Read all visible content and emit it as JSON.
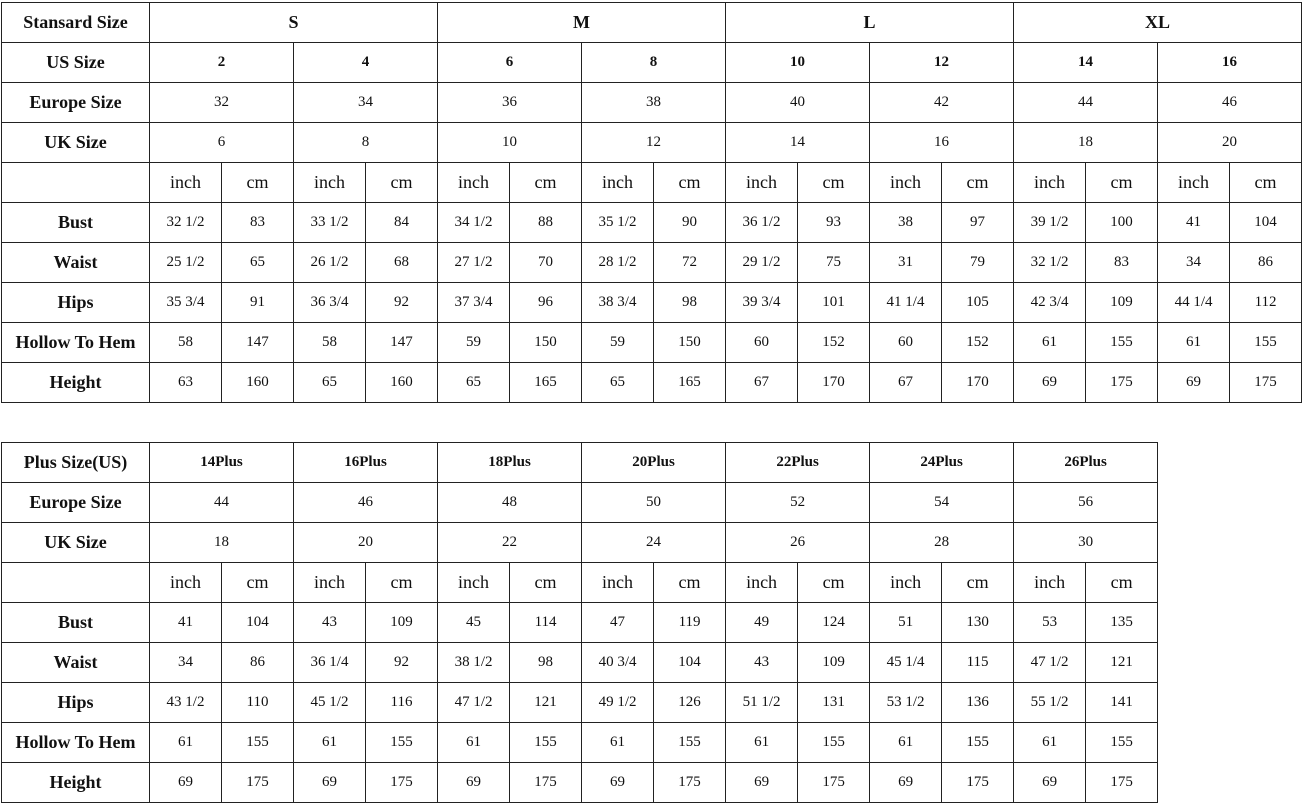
{
  "standard_table": {
    "size_label": "Stansard Size",
    "sizes": [
      "S",
      "M",
      "L",
      "XL"
    ],
    "us_label": "US Size",
    "us": [
      "2",
      "4",
      "6",
      "8",
      "10",
      "12",
      "14",
      "16"
    ],
    "europe_label": "Europe Size",
    "europe": [
      "32",
      "34",
      "36",
      "38",
      "40",
      "42",
      "44",
      "46"
    ],
    "uk_label": "UK Size",
    "uk": [
      "6",
      "8",
      "10",
      "12",
      "14",
      "16",
      "18",
      "20"
    ],
    "units": [
      "inch",
      "cm"
    ],
    "measurements": [
      {
        "label": "Bust",
        "values": [
          "32 1/2",
          "83",
          "33 1/2",
          "84",
          "34 1/2",
          "88",
          "35 1/2",
          "90",
          "36 1/2",
          "93",
          "38",
          "97",
          "39 1/2",
          "100",
          "41",
          "104"
        ]
      },
      {
        "label": "Waist",
        "values": [
          "25 1/2",
          "65",
          "26 1/2",
          "68",
          "27 1/2",
          "70",
          "28 1/2",
          "72",
          "29 1/2",
          "75",
          "31",
          "79",
          "32 1/2",
          "83",
          "34",
          "86"
        ]
      },
      {
        "label": "Hips",
        "values": [
          "35 3/4",
          "91",
          "36 3/4",
          "92",
          "37 3/4",
          "96",
          "38 3/4",
          "98",
          "39 3/4",
          "101",
          "41 1/4",
          "105",
          "42 3/4",
          "109",
          "44 1/4",
          "112"
        ]
      },
      {
        "label": "Hollow To Hem",
        "values": [
          "58",
          "147",
          "58",
          "147",
          "59",
          "150",
          "59",
          "150",
          "60",
          "152",
          "60",
          "152",
          "61",
          "155",
          "61",
          "155"
        ]
      },
      {
        "label": "Height",
        "values": [
          "63",
          "160",
          "65",
          "160",
          "65",
          "165",
          "65",
          "165",
          "67",
          "170",
          "67",
          "170",
          "69",
          "175",
          "69",
          "175"
        ]
      }
    ]
  },
  "plus_table": {
    "size_label": "Plus Size(US)",
    "sizes": [
      "14Plus",
      "16Plus",
      "18Plus",
      "20Plus",
      "22Plus",
      "24Plus",
      "26Plus"
    ],
    "europe_label": "Europe Size",
    "europe": [
      "44",
      "46",
      "48",
      "50",
      "52",
      "54",
      "56"
    ],
    "uk_label": "UK Size",
    "uk": [
      "18",
      "20",
      "22",
      "24",
      "26",
      "28",
      "30"
    ],
    "units": [
      "inch",
      "cm"
    ],
    "measurements": [
      {
        "label": "Bust",
        "values": [
          "41",
          "104",
          "43",
          "109",
          "45",
          "114",
          "47",
          "119",
          "49",
          "124",
          "51",
          "130",
          "53",
          "135"
        ]
      },
      {
        "label": "Waist",
        "values": [
          "34",
          "86",
          "36 1/4",
          "92",
          "38 1/2",
          "98",
          "40 3/4",
          "104",
          "43",
          "109",
          "45 1/4",
          "115",
          "47 1/2",
          "121"
        ]
      },
      {
        "label": "Hips",
        "values": [
          "43 1/2",
          "110",
          "45 1/2",
          "116",
          "47 1/2",
          "121",
          "49 1/2",
          "126",
          "51 1/2",
          "131",
          "53 1/2",
          "136",
          "55 1/2",
          "141"
        ]
      },
      {
        "label": "Hollow To Hem",
        "values": [
          "61",
          "155",
          "61",
          "155",
          "61",
          "155",
          "61",
          "155",
          "61",
          "155",
          "61",
          "155",
          "61",
          "155"
        ]
      },
      {
        "label": "Height",
        "values": [
          "69",
          "175",
          "69",
          "175",
          "69",
          "175",
          "69",
          "175",
          "69",
          "175",
          "69",
          "175",
          "69",
          "175"
        ]
      }
    ]
  }
}
